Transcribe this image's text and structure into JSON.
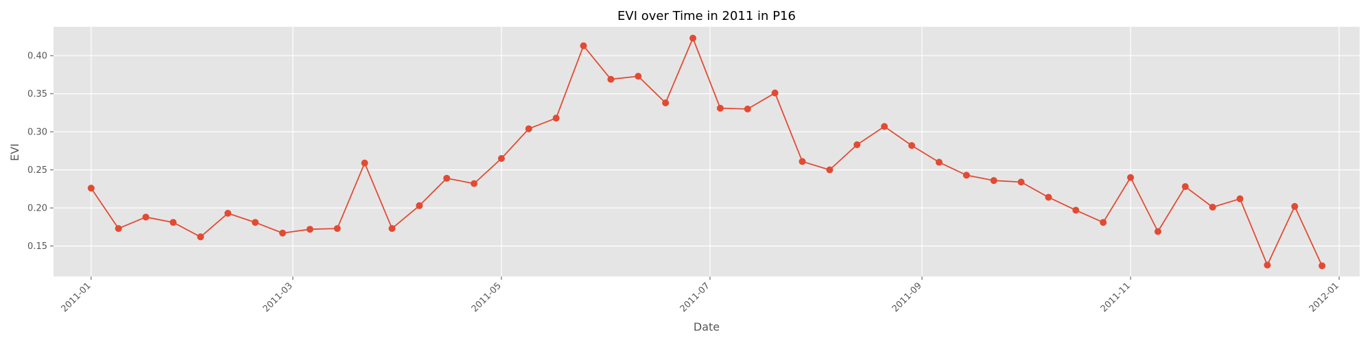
{
  "chart_data": {
    "type": "line",
    "title": "EVI over Time in 2011 in P16",
    "xlabel": "Date",
    "ylabel": "EVI",
    "x_ticks": [
      "2011-01",
      "2011-03",
      "2011-05",
      "2011-07",
      "2011-09",
      "2011-11",
      "2012-01"
    ],
    "y_ticks": [
      "0.15",
      "0.20",
      "0.25",
      "0.30",
      "0.35",
      "0.40"
    ],
    "xlim": [
      "2010-12-21",
      "2012-01-07"
    ],
    "ylim": [
      0.11,
      0.438
    ],
    "grid": true,
    "series": [
      {
        "color": "#E24A33",
        "marker": "circle",
        "x": [
          "2011-01-01",
          "2011-01-09",
          "2011-01-17",
          "2011-01-25",
          "2011-02-02",
          "2011-02-10",
          "2011-02-18",
          "2011-02-26",
          "2011-03-06",
          "2011-03-14",
          "2011-03-22",
          "2011-03-30",
          "2011-04-07",
          "2011-04-15",
          "2011-04-23",
          "2011-05-01",
          "2011-05-09",
          "2011-05-17",
          "2011-05-25",
          "2011-06-02",
          "2011-06-10",
          "2011-06-18",
          "2011-06-26",
          "2011-07-04",
          "2011-07-12",
          "2011-07-20",
          "2011-07-28",
          "2011-08-05",
          "2011-08-13",
          "2011-08-21",
          "2011-08-29",
          "2011-09-06",
          "2011-09-14",
          "2011-09-22",
          "2011-09-30",
          "2011-10-08",
          "2011-10-16",
          "2011-10-24",
          "2011-11-01",
          "2011-11-09",
          "2011-11-17",
          "2011-11-25",
          "2011-12-03",
          "2011-12-11",
          "2011-12-19",
          "2011-12-27"
        ],
        "values": [
          0.226,
          0.173,
          0.188,
          0.181,
          0.162,
          0.193,
          0.181,
          0.167,
          0.172,
          0.173,
          0.259,
          0.173,
          0.203,
          0.239,
          0.232,
          0.265,
          0.304,
          0.318,
          0.413,
          0.369,
          0.373,
          0.338,
          0.423,
          0.331,
          0.33,
          0.351,
          0.261,
          0.25,
          0.283,
          0.307,
          0.282,
          0.26,
          0.243,
          0.236,
          0.234,
          0.214,
          0.197,
          0.181,
          0.24,
          0.169,
          0.228,
          0.201,
          0.212,
          0.125,
          0.202,
          0.124
        ]
      }
    ]
  }
}
